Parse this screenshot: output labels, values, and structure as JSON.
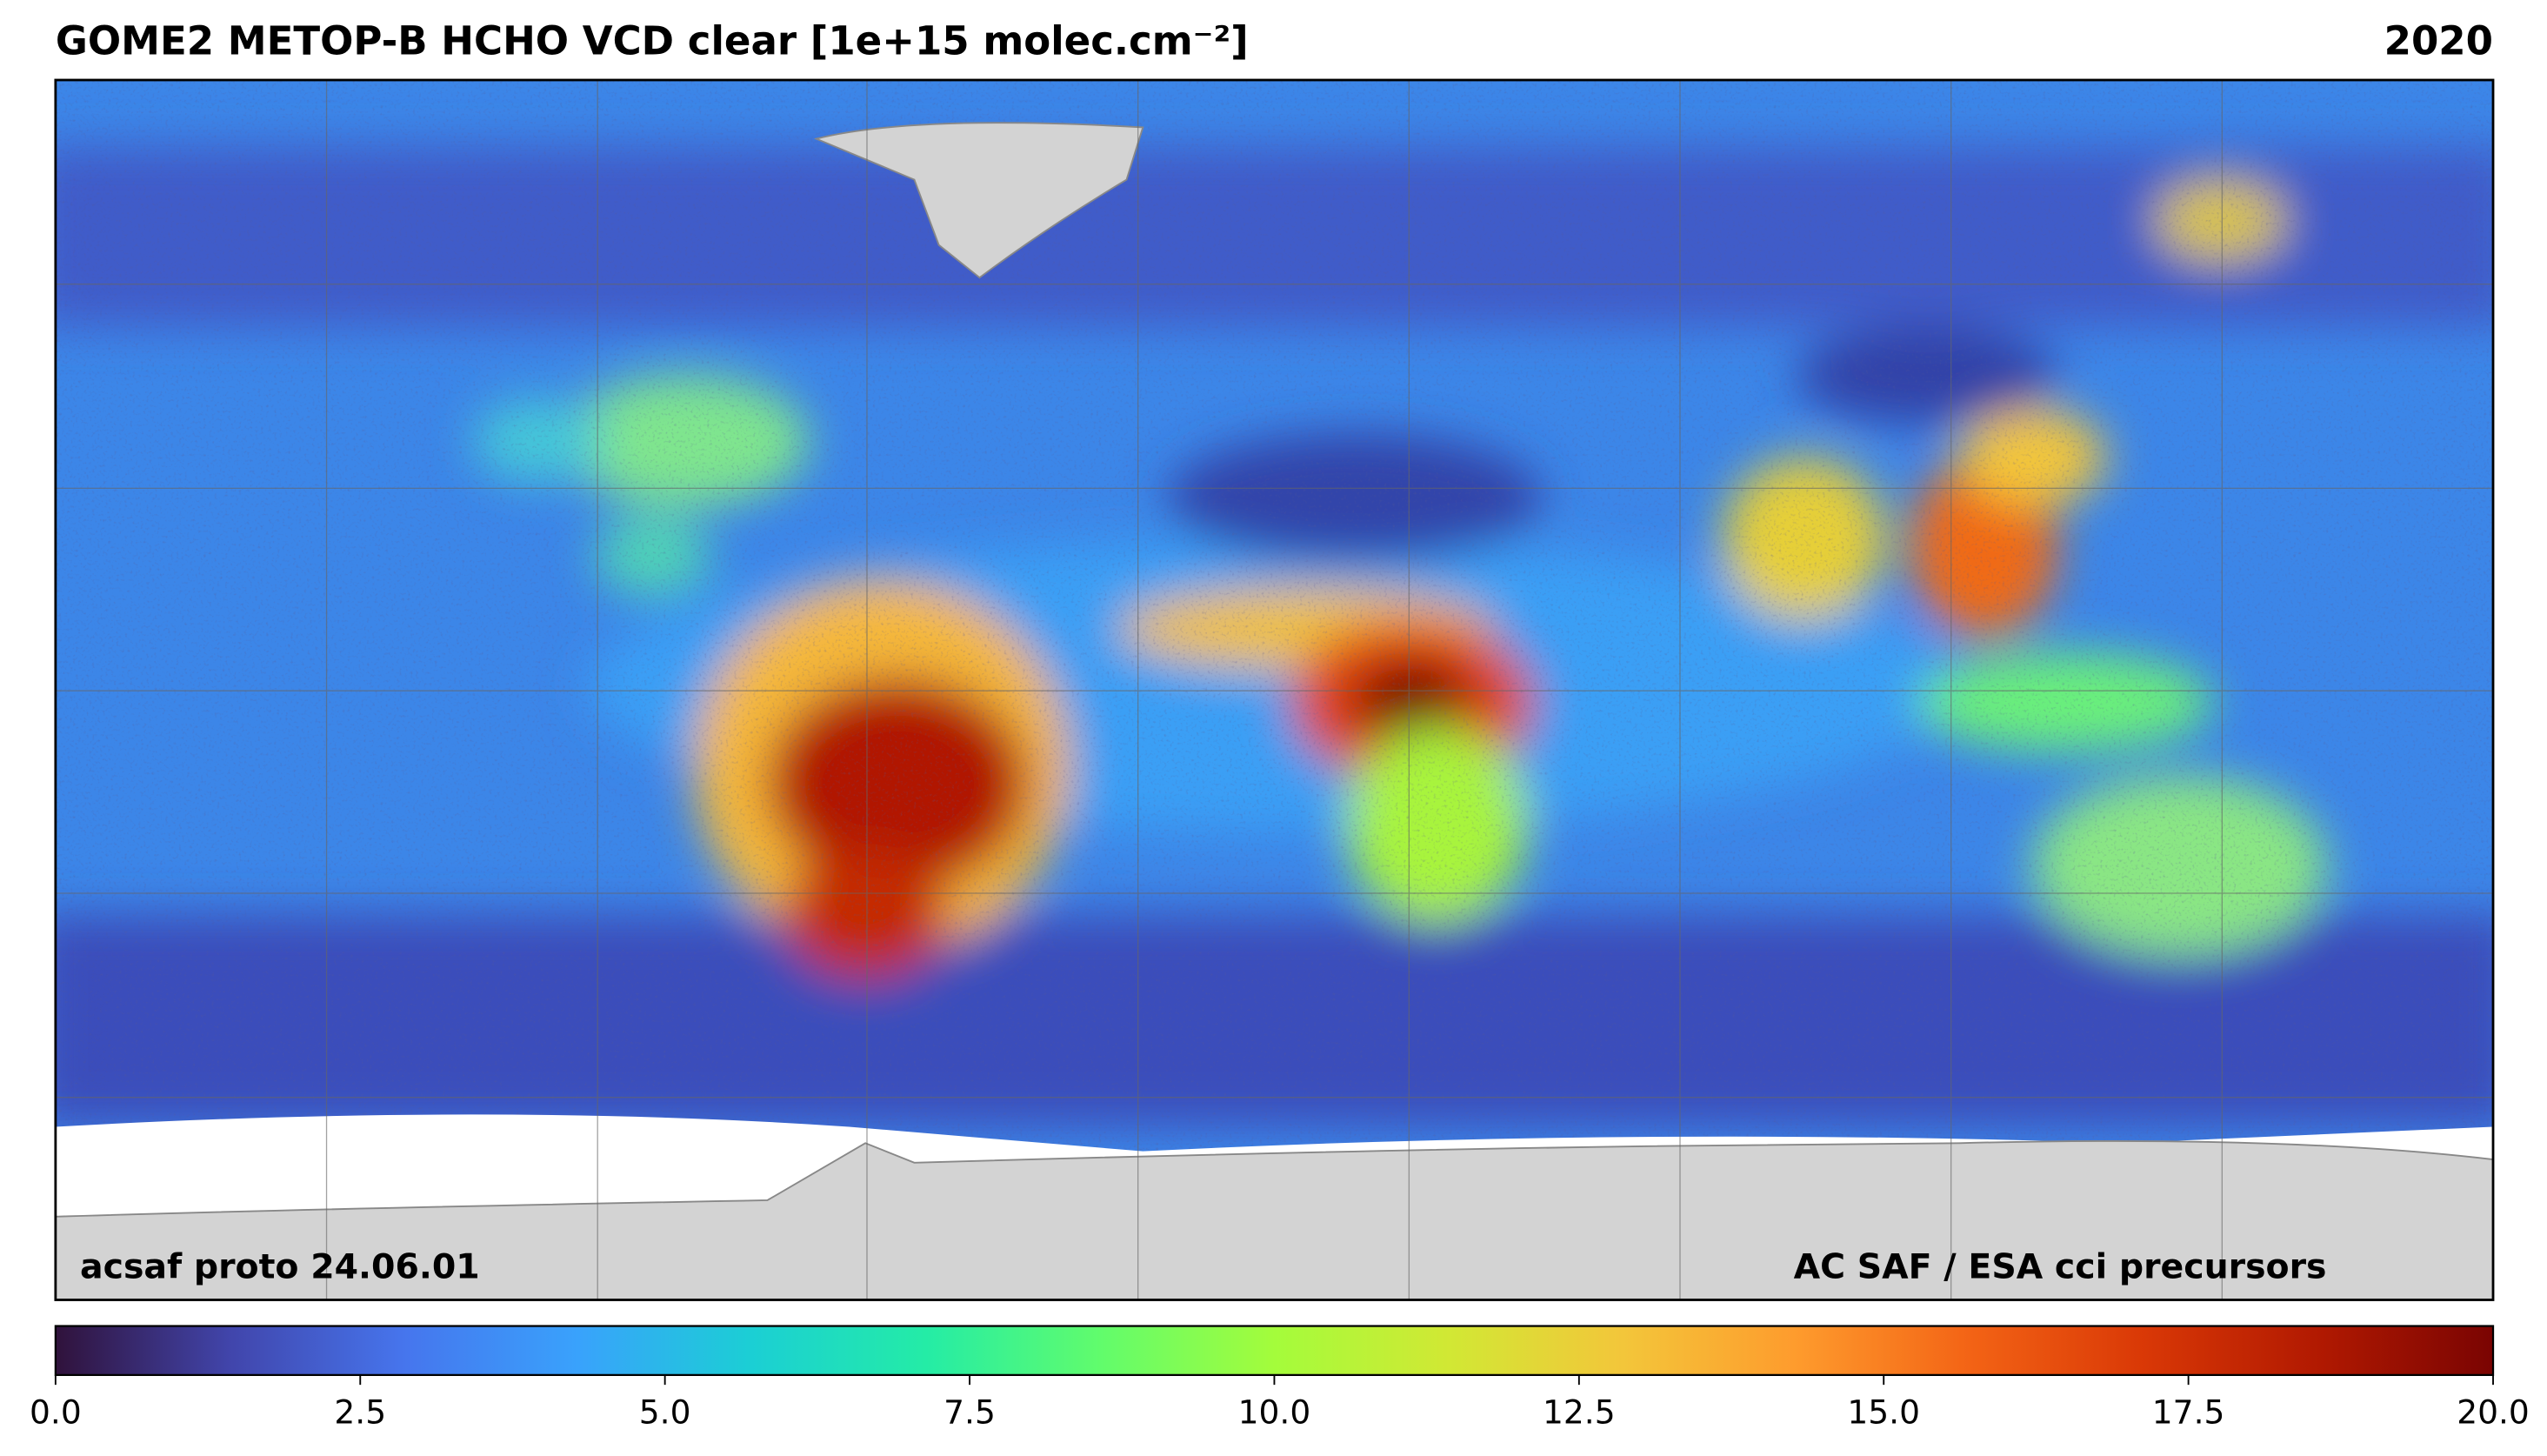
{
  "title": "GOME2 METOP-B HCHO VCD clear [1e+15 molec.cm⁻²]",
  "year": "2020",
  "footer_left": "acsaf proto 24.06.01",
  "footer_right": "AC SAF / ESA cci precursors",
  "colorbar": {
    "lim": [
      0,
      20
    ],
    "ticks": [
      {
        "value": 0,
        "label": "0.0"
      },
      2.5,
      {
        "value": 5,
        "label": "5.0"
      },
      7.5,
      {
        "value": 10,
        "label": "10.0"
      },
      12.5,
      {
        "value": 15,
        "label": "15.0"
      },
      17.5,
      {
        "value": 20,
        "label": "20.0"
      }
    ],
    "colors": [
      "#30123b",
      "#4145ab",
      "#4675ed",
      "#39a2fc",
      "#1bcfd4",
      "#24eca6",
      "#61fc6c",
      "#a4fc3b",
      "#d1e834",
      "#f3c63a",
      "#fe9b2d",
      "#f36315",
      "#d93806",
      "#b11901",
      "#7a0402"
    ]
  }
}
